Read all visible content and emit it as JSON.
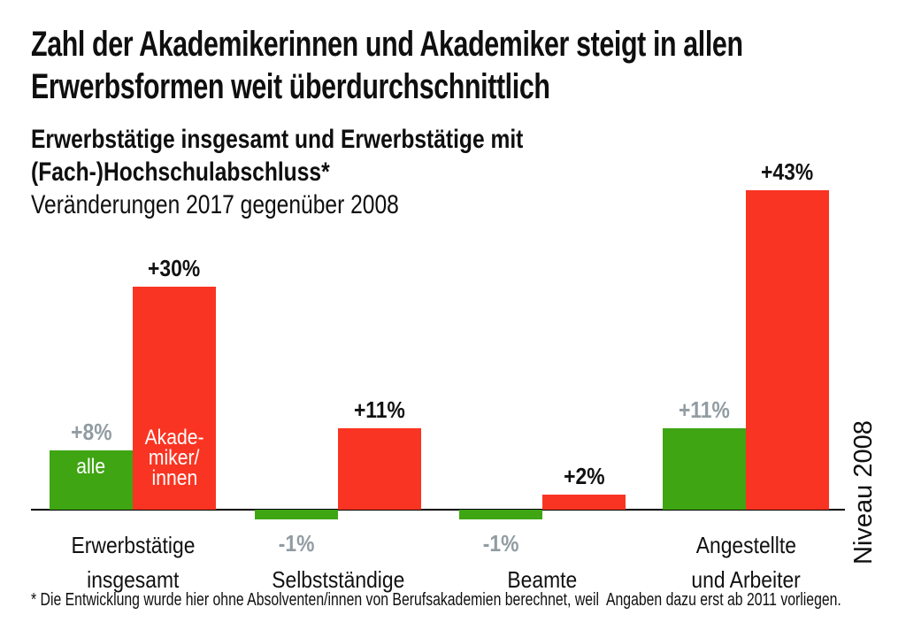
{
  "header": {
    "title_line1": "Zahl der Akademikerinnen und Akademiker steigt in allen",
    "title_line2": "Erwerbsformen weit überdurchschnittlich",
    "subtitle_bold_line1": "Erwerbstätige insgesamt und Erwerbstätige mit",
    "subtitle_bold_line2": "(Fach-)Hochschulabschluss*",
    "subtitle_line3": "Veränderungen 2017 gegenüber 2008"
  },
  "colors": {
    "green": "#3fa513",
    "red": "#fa3422",
    "gray_label": "#919ca2",
    "text": "#111111",
    "axis": "#000000"
  },
  "chart_data": {
    "type": "bar",
    "title": "Erwerbstätige insgesamt und Erwerbstätige mit (Fach-)Hochschulabschluss*",
    "subtitle": "Veränderungen 2017 gegenüber 2008",
    "unit": "%",
    "categories": [
      "Erwerbstätige insgesamt",
      "Selbstständige",
      "Beamte",
      "Angestellte und Arbeiter"
    ],
    "category_lines": [
      [
        "Erwerbstätige",
        "insgesamt"
      ],
      [
        "Selbstständige"
      ],
      [
        "Beamte"
      ],
      [
        "Angestellte",
        "und Arbeiter"
      ]
    ],
    "series": [
      {
        "key": "green",
        "name": "alle",
        "values": [
          8,
          -1,
          -1,
          11
        ],
        "labels": [
          "+8%",
          "-1%",
          "-1%",
          "+11%"
        ]
      },
      {
        "key": "red",
        "name": "Akademiker/innen",
        "values": [
          30,
          11,
          2,
          43
        ],
        "labels": [
          "+30%",
          "+11%",
          "+2%",
          "+43%"
        ]
      }
    ],
    "inline_labels": [
      {
        "group": 0,
        "series": "green",
        "lines": [
          "alle"
        ]
      },
      {
        "group": 0,
        "series": "red",
        "lines": [
          "Akade-",
          "miker/",
          "innen"
        ]
      }
    ],
    "baseline_label": "Niveau 2008",
    "ylim": [
      -5,
      45
    ],
    "grid": false,
    "legend": "inline labels on first bar pair"
  },
  "footnote": {
    "text": "* Die Entwicklung wurde hier ohne Absolventen/innen von Berufsakademien berechnet, weil  Angaben dazu erst ab 2011 vorliegen."
  }
}
